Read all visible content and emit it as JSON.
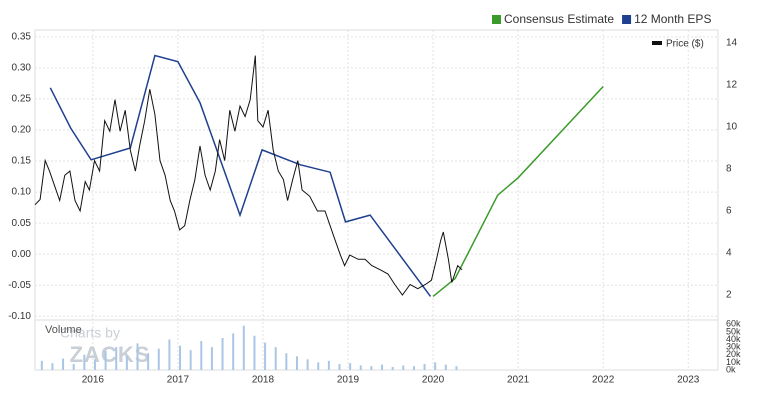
{
  "chart_data": {
    "type": "line",
    "xlim": [
      2015.32,
      2023.35
    ],
    "xticks": [
      2016,
      2017,
      2018,
      2019,
      2020,
      2021,
      2022,
      2023
    ],
    "ylim": [
      -0.106,
      0.361
    ],
    "yticks": [
      {
        "value": -0.1,
        "label": "-0.10"
      },
      -0.05,
      {
        "value": 0,
        "label": "0.00"
      },
      0.05,
      {
        "value": 0.1,
        "label": "0.10"
      },
      0.15,
      {
        "value": 0.2,
        "label": "0.20"
      },
      0.25,
      {
        "value": 0.3,
        "label": "0.30"
      },
      0.35
    ],
    "y2lim": [
      0.81,
      14.62
    ],
    "y2ticks": [
      2,
      4,
      6,
      8,
      10,
      12,
      14
    ],
    "grid": true,
    "series": [
      {
        "name": "Consensus Estimate",
        "color": "#3a9a2a",
        "x": [
          2020.0,
          2020.26,
          2020.76,
          2021.0,
          2022.0
        ],
        "values": [
          -0.068,
          -0.039,
          0.095,
          0.123,
          0.27
        ]
      },
      {
        "name": "12 Month EPS",
        "color": "#1f3f8f",
        "x": [
          2015.5,
          2015.74,
          2015.98,
          2016.44,
          2016.73,
          2017.0,
          2017.26,
          2017.73,
          2017.99,
          2018.44,
          2018.79,
          2018.97,
          2019.26,
          2019.97
        ],
        "values": [
          0.268,
          0.203,
          0.152,
          0.171,
          0.32,
          0.31,
          0.244,
          0.063,
          0.168,
          0.144,
          0.132,
          0.052,
          0.063,
          -0.068
        ]
      },
      {
        "name": "Price ($)",
        "color": "#111111",
        "axis": "y2",
        "x": [
          2015.32,
          2015.38,
          2015.44,
          2015.49,
          2015.55,
          2015.61,
          2015.67,
          2015.73,
          2015.79,
          2015.85,
          2015.91,
          2015.96,
          2016.02,
          2016.08,
          2016.14,
          2016.2,
          2016.26,
          2016.32,
          2016.38,
          2016.44,
          2016.5,
          2016.55,
          2016.61,
          2016.67,
          2016.73,
          2016.79,
          2016.85,
          2016.91,
          2016.96,
          2017.02,
          2017.08,
          2017.14,
          2017.2,
          2017.26,
          2017.32,
          2017.38,
          2017.44,
          2017.49,
          2017.55,
          2017.61,
          2017.67,
          2017.73,
          2017.79,
          2017.85,
          2017.91,
          2017.94,
          2018.0,
          2018.06,
          2018.12,
          2018.18,
          2018.24,
          2018.29,
          2018.35,
          2018.41,
          2018.46,
          2018.55,
          2018.64,
          2018.73,
          2018.79,
          2018.85,
          2018.91,
          2018.96,
          2019.02,
          2019.12,
          2019.2,
          2019.28,
          2019.38,
          2019.47,
          2019.55,
          2019.64,
          2019.73,
          2019.82,
          2019.91,
          2019.98,
          2020.04,
          2020.09,
          2020.12,
          2020.18,
          2020.22,
          2020.29,
          2020.34
        ],
        "values": [
          6.3,
          6.55,
          8.4,
          7.9,
          7.2,
          6.5,
          7.7,
          7.9,
          6.5,
          6.0,
          7.4,
          7.0,
          8.4,
          7.9,
          10.3,
          9.8,
          11.3,
          9.8,
          10.8,
          8.9,
          7.9,
          9.1,
          10.3,
          11.8,
          10.6,
          8.4,
          7.7,
          6.5,
          6.0,
          5.1,
          5.3,
          6.5,
          7.5,
          9.1,
          7.7,
          7.0,
          7.9,
          9.4,
          8.4,
          10.8,
          9.8,
          11.0,
          10.5,
          11.3,
          13.4,
          10.3,
          10.0,
          10.8,
          8.9,
          7.9,
          7.5,
          6.5,
          7.5,
          8.4,
          7.0,
          6.7,
          6.0,
          6.0,
          5.3,
          4.6,
          3.9,
          3.4,
          3.9,
          3.7,
          3.7,
          3.4,
          3.2,
          3.0,
          2.5,
          2.0,
          2.5,
          2.3,
          2.5,
          2.7,
          3.7,
          4.6,
          5.0,
          3.7,
          2.6,
          3.4,
          3.2
        ]
      }
    ],
    "volume": {
      "label": "Volume",
      "color": "#a9c6e6",
      "ylim": [
        0,
        63000
      ],
      "yticks": [
        {
          "value": 0,
          "label": "0k"
        },
        {
          "value": 10000,
          "label": "10k"
        },
        {
          "value": 20000,
          "label": "20k"
        },
        {
          "value": 30000,
          "label": "30k"
        },
        {
          "value": 40000,
          "label": "40k"
        },
        {
          "value": 50000,
          "label": "50k"
        },
        {
          "value": 60000,
          "label": "60k"
        }
      ],
      "x": [
        2015.4,
        2015.525,
        2015.65,
        2015.775,
        2015.9,
        2016.025,
        2016.15,
        2016.275,
        2016.4,
        2016.525,
        2016.65,
        2016.775,
        2016.9,
        2017.025,
        2017.15,
        2017.275,
        2017.4,
        2017.525,
        2017.65,
        2017.775,
        2017.9,
        2018.025,
        2018.15,
        2018.275,
        2018.4,
        2018.525,
        2018.65,
        2018.775,
        2018.9,
        2019.025,
        2019.15,
        2019.275,
        2019.4,
        2019.525,
        2019.65,
        2019.775,
        2019.9,
        2020.025,
        2020.15,
        2020.275
      ],
      "values": [
        12000,
        9000,
        15000,
        8000,
        20000,
        14000,
        25000,
        30000,
        18000,
        35000,
        22000,
        28000,
        40000,
        32000,
        26000,
        38000,
        30000,
        42000,
        48000,
        58000,
        45000,
        36000,
        30000,
        22000,
        18000,
        14000,
        10000,
        12000,
        8000,
        9000,
        6000,
        5000,
        7000,
        4000,
        6000,
        5000,
        8000,
        10000,
        7000,
        5000
      ]
    },
    "legend": {
      "watermark_top": "Charts by",
      "watermark_brand": "ZACKS"
    }
  }
}
